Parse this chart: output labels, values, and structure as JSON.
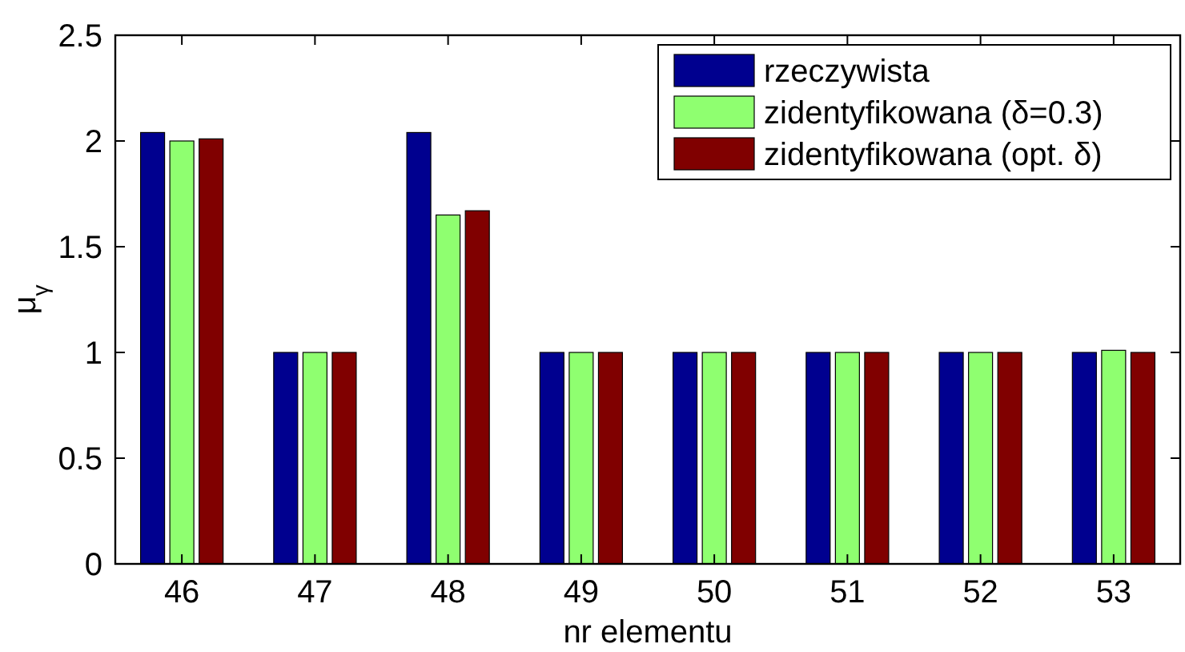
{
  "chart_data": {
    "type": "bar",
    "xlabel": "nr elementu",
    "ylabel": "μ$_{γ}$",
    "categories": [
      "46",
      "47",
      "48",
      "49",
      "50",
      "51",
      "52",
      "53"
    ],
    "series": [
      {
        "name": "rzeczywista",
        "color": "#00008f",
        "values": [
          2.04,
          1,
          2.04,
          1,
          1,
          1,
          1,
          1
        ]
      },
      {
        "name": "zidentyfikowana (δ=0.3)",
        "color": "#8fff70",
        "values": [
          2.0,
          1,
          1.65,
          1,
          1,
          1,
          1,
          1.01
        ]
      },
      {
        "name": "zidentyfikowana (opt. δ)",
        "color": "#800000",
        "values": [
          2.01,
          1,
          1.67,
          1,
          1,
          1,
          1,
          1
        ]
      }
    ],
    "ylim": [
      0,
      2.5
    ],
    "yticks": [
      0,
      0.5,
      1,
      1.5,
      2,
      2.5
    ],
    "grid": false,
    "legend": "top right"
  }
}
